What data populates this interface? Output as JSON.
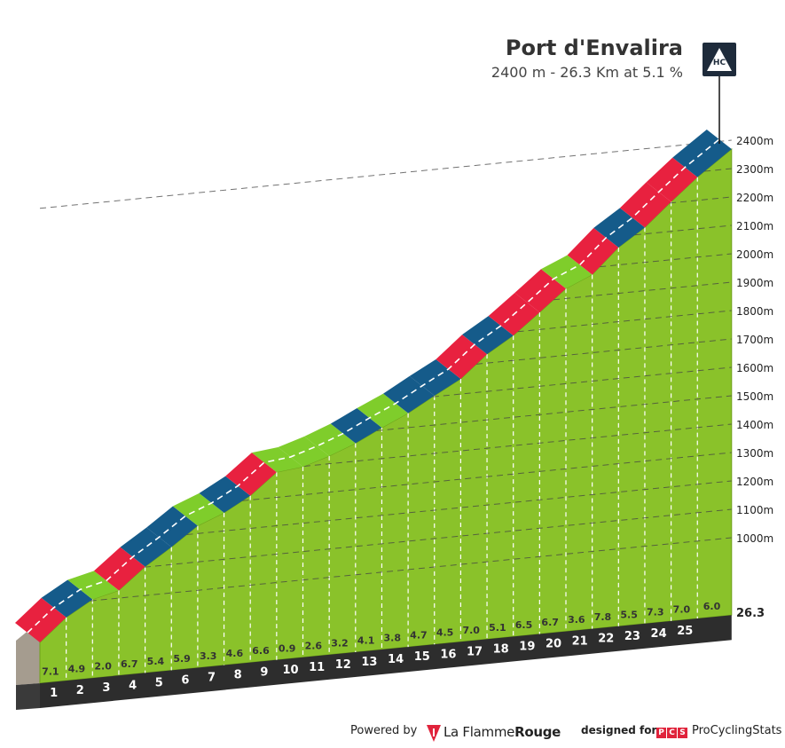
{
  "chart_data": {
    "type": "area",
    "title": "Port d'Envalira",
    "subtitle": "2400 m - 26.3 Km at 5.1 %",
    "category": "HC",
    "distance_total_label": "26.3",
    "km_markers": [
      "1",
      "2",
      "3",
      "4",
      "5",
      "6",
      "7",
      "8",
      "9",
      "10",
      "11",
      "12",
      "13",
      "14",
      "15",
      "16",
      "17",
      "18",
      "19",
      "20",
      "21",
      "22",
      "23",
      "24",
      "25"
    ],
    "segment_gradients": [
      7.1,
      4.9,
      2.0,
      6.7,
      5.4,
      5.9,
      3.3,
      4.6,
      6.6,
      0.9,
      2.6,
      3.2,
      4.1,
      3.8,
      4.7,
      4.5,
      7.0,
      5.1,
      6.5,
      6.7,
      3.6,
      7.8,
      5.5,
      7.3,
      7.0,
      6.0
    ],
    "segment_gradient_labels": [
      "7.1",
      "4.9",
      "2.0",
      "6.7",
      "5.4",
      "5.9",
      "3.3",
      "4.6",
      "6.6",
      "0.9",
      "2.6",
      "3.2",
      "4.1",
      "3.8",
      "4.7",
      "4.5",
      "7.0",
      "5.1",
      "6.5",
      "6.7",
      "3.6",
      "7.8",
      "5.5",
      "7.3",
      "7.0",
      "6.0"
    ],
    "segment_lengths_km": [
      1,
      1,
      1,
      1,
      1,
      1,
      1,
      1,
      1,
      1,
      1,
      1,
      1,
      1,
      1,
      1,
      1,
      1,
      1,
      1,
      1,
      1,
      1,
      1,
      1,
      1.3
    ],
    "elevation_ticks": [
      {
        "value": 1000,
        "label": "1000m"
      },
      {
        "value": 1100,
        "label": "1100m"
      },
      {
        "value": 1200,
        "label": "1200m"
      },
      {
        "value": 1300,
        "label": "1300m"
      },
      {
        "value": 1400,
        "label": "1400m"
      },
      {
        "value": 1500,
        "label": "1500m"
      },
      {
        "value": 1600,
        "label": "1600m"
      },
      {
        "value": 1700,
        "label": "1700m"
      },
      {
        "value": 1800,
        "label": "1800m"
      },
      {
        "value": 1900,
        "label": "1900m"
      },
      {
        "value": 2000,
        "label": "2000m"
      },
      {
        "value": 2100,
        "label": "2100m"
      },
      {
        "value": 2200,
        "label": "2200m"
      },
      {
        "value": 2300,
        "label": "2300m"
      },
      {
        "value": 2400,
        "label": "2400m"
      }
    ],
    "summit_elevation_m": 2400,
    "colors": {
      "side": "#8ac22a",
      "side_edge": "#6ea11a",
      "base": "#2d2d2d",
      "wall": "#a59c8f",
      "ribbon_green": "#7fcd2b",
      "ribbon_red": "#e8213f",
      "ribbon_blue": "#155b8a",
      "dash": "#ffffff",
      "gridline": "#444444"
    },
    "ribbon_colors": [
      "red",
      "blue",
      "green",
      "red",
      "blue",
      "blue",
      "green",
      "blue",
      "red",
      "green",
      "green",
      "green",
      "blue",
      "green",
      "blue",
      "blue",
      "red",
      "blue",
      "red",
      "red",
      "green",
      "red",
      "blue",
      "red",
      "red",
      "blue"
    ]
  },
  "footer": {
    "powered_by": "Powered by",
    "lfr_light": "La Flamme",
    "lfr_bold": "Rouge",
    "designed_for": "designed for",
    "pcs_letters": [
      "P",
      "C",
      "S"
    ],
    "pcs_name": "ProCyclingStats"
  }
}
